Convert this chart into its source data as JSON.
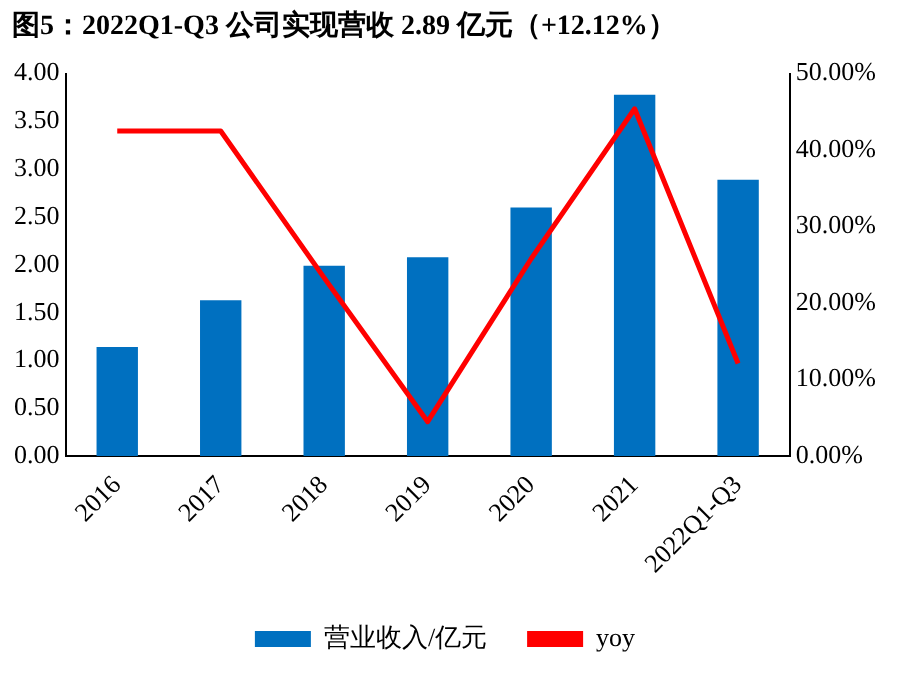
{
  "chart_data": {
    "type": "bar",
    "title": "图5：2022Q1-Q3 公司实现营收 2.89 亿元（+12.12%）",
    "categories": [
      "2016",
      "2017",
      "2018",
      "2019",
      "2020",
      "2021",
      "2022Q1-Q3"
    ],
    "series": [
      {
        "name": "营业收入/亿元",
        "color": "#0070c0",
        "values": [
          1.14,
          1.63,
          1.99,
          2.08,
          2.6,
          3.78,
          2.89
        ]
      },
      {
        "name": "yoy",
        "type": "line",
        "axis": "y2",
        "color": "#ff0000",
        "values": [
          42.5,
          42.5,
          23.3,
          4.5,
          25.8,
          45.4,
          12.1
        ]
      }
    ],
    "ylim": [
      0,
      4
    ],
    "yticks": [
      {
        "value": 0,
        "label": "0.00"
      },
      {
        "value": 0.5,
        "label": "0.50"
      },
      {
        "value": 1,
        "label": "1.00"
      },
      {
        "value": 1.5,
        "label": "1.50"
      },
      {
        "value": 2,
        "label": "2.00"
      },
      {
        "value": 2.5,
        "label": "2.50"
      },
      {
        "value": 3,
        "label": "3.00"
      },
      {
        "value": 3.5,
        "label": "3.50"
      },
      {
        "value": 4,
        "label": "4.00"
      }
    ],
    "y2lim": [
      0,
      50
    ],
    "y2ticks": [
      {
        "value": 0,
        "label": "0.00%"
      },
      {
        "value": 10,
        "label": "10.00%"
      },
      {
        "value": 20,
        "label": "20.00%"
      },
      {
        "value": 30,
        "label": "30.00%"
      },
      {
        "value": 40,
        "label": "40.00%"
      },
      {
        "value": 50,
        "label": "50.00%"
      }
    ],
    "grid": false,
    "legend": "bottom",
    "marker": "none"
  }
}
